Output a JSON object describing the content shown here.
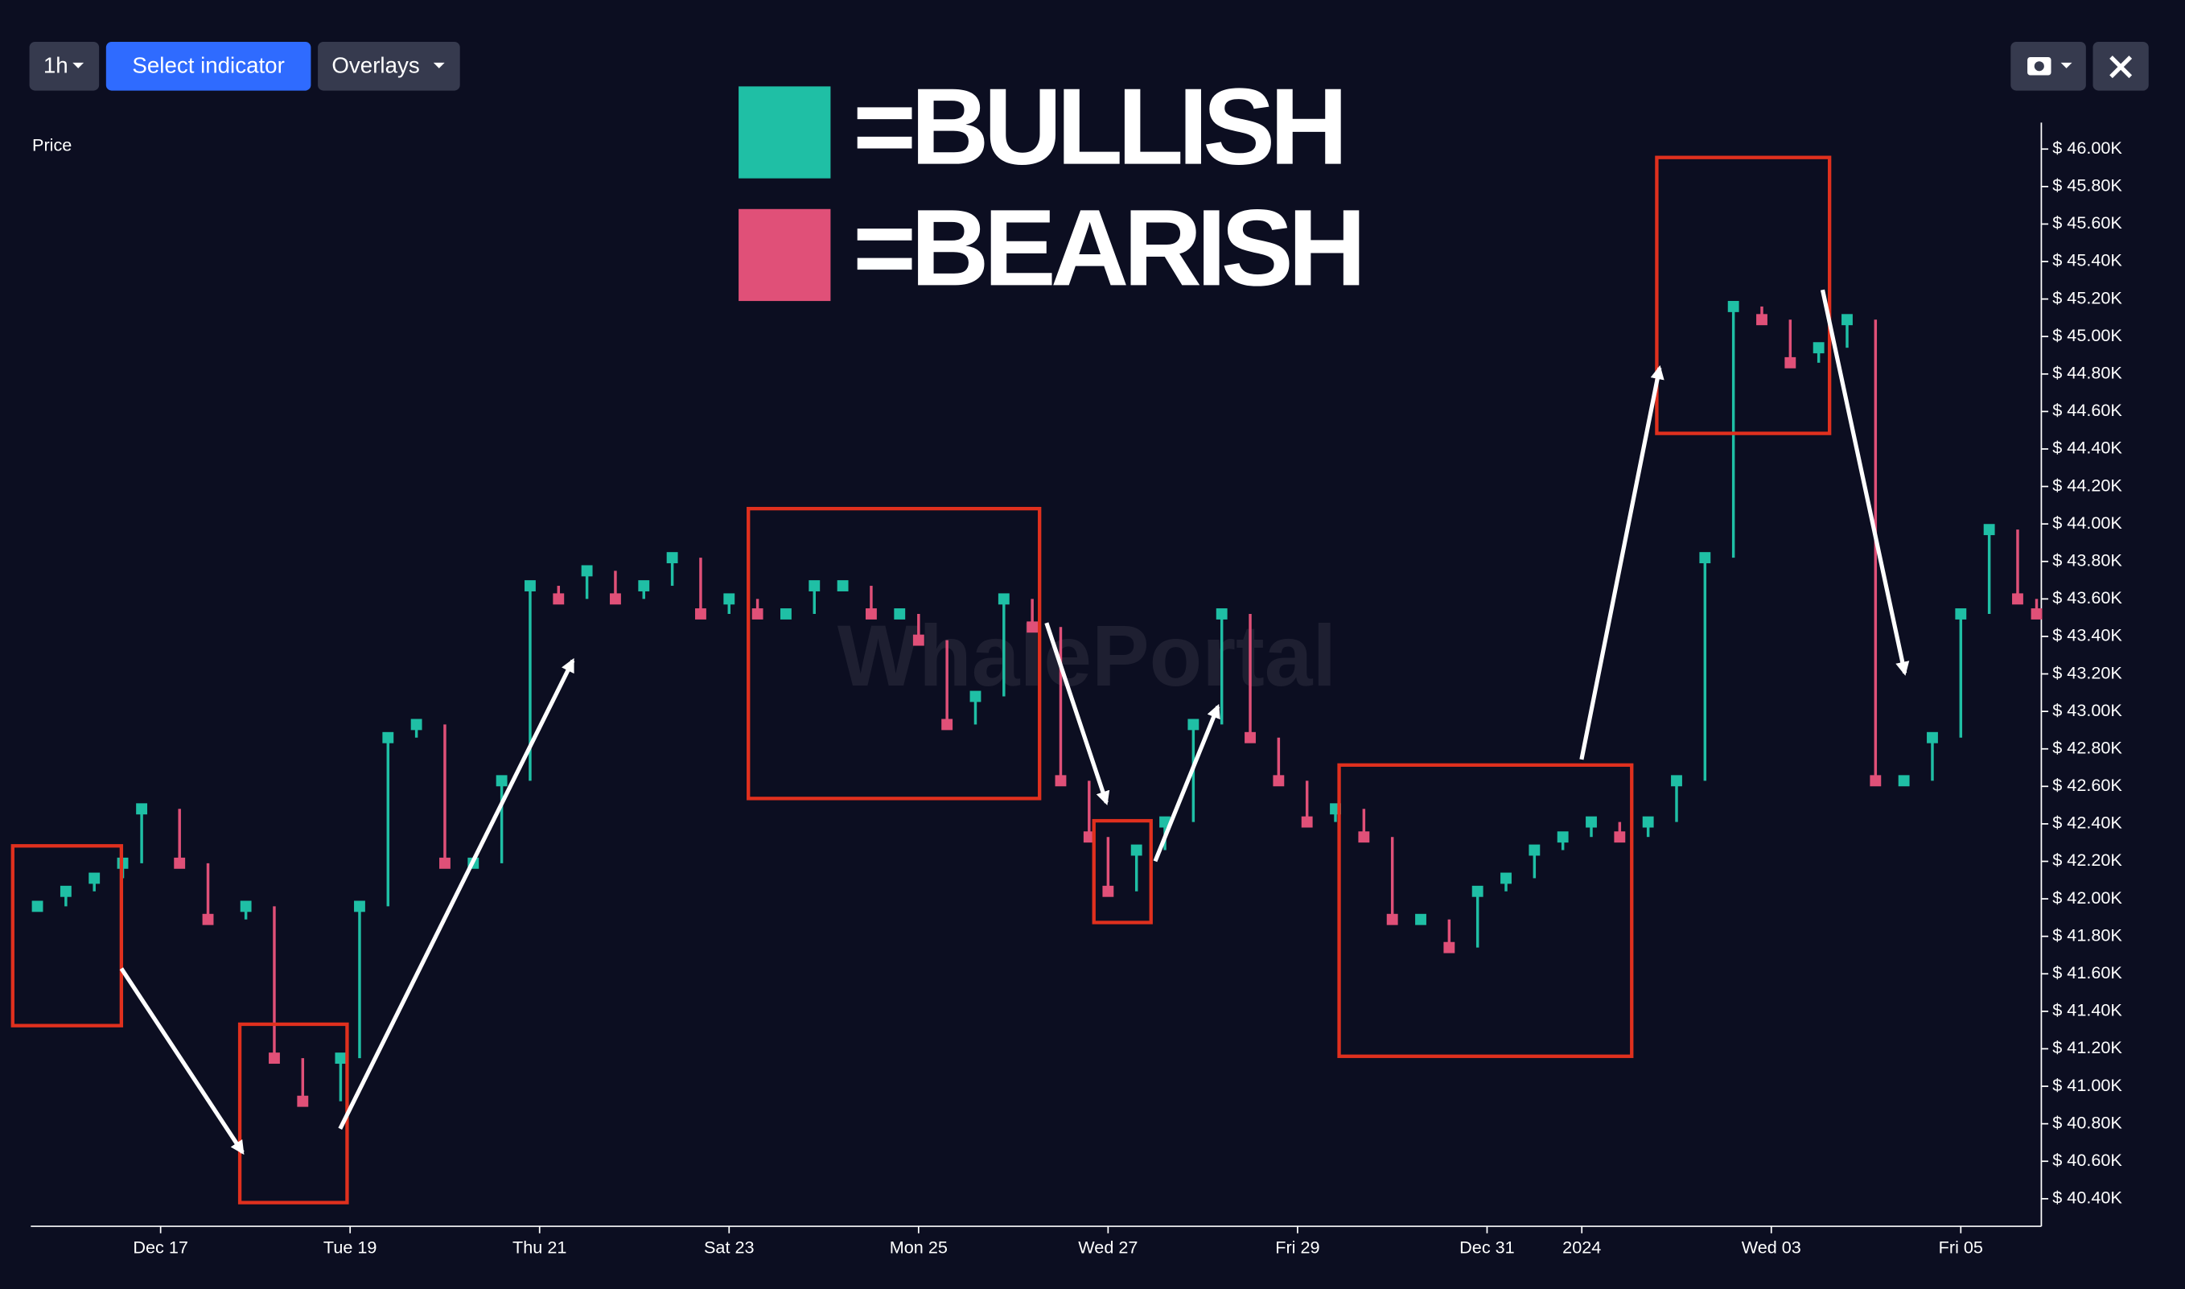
{
  "toolbar": {
    "interval": "1h",
    "indicator": "Select indicator",
    "overlays": "Overlays"
  },
  "watermark": "WhalePortal",
  "chart_data": {
    "type": "scatter",
    "ylabel": "Price",
    "legend": [
      {
        "label": "=BULLISH",
        "color": "#1fbfa5"
      },
      {
        "label": "=BEARISH",
        "color": "#e05078"
      }
    ],
    "x": [
      15.7,
      16,
      16.3,
      16.6,
      16.8,
      17.2,
      17.5,
      17.9,
      18.2,
      18.5,
      18.9,
      19.1,
      19.4,
      19.7,
      20,
      20.3,
      20.6,
      20.9,
      21.2,
      21.5,
      21.8,
      22.1,
      22.4,
      22.7,
      23,
      23.3,
      23.6,
      23.9,
      24.2,
      24.5,
      24.8,
      25,
      25.3,
      25.6,
      25.9,
      26.2,
      26.5,
      26.8,
      27,
      27.3,
      27.6,
      27.9,
      28.2,
      28.5,
      28.8,
      29.1,
      29.4,
      29.7,
      30,
      30.3,
      30.6,
      30.9,
      31.2,
      31.5,
      31.8,
      32.1,
      32.4,
      32.7,
      33,
      33.3,
      33.6,
      33.9,
      34.2,
      34.5,
      34.8,
      35.1,
      35.4,
      35.7,
      36,
      36.3,
      36.6,
      36.8
    ],
    "values": [
      41960,
      42040,
      42110,
      42190,
      42480,
      42190,
      41890,
      41960,
      41150,
      40920,
      41150,
      41960,
      42860,
      42930,
      42190,
      42190,
      42630,
      43670,
      43600,
      43750,
      43600,
      43670,
      43820,
      43520,
      43600,
      43520,
      43520,
      43670,
      43670,
      43520,
      43520,
      43380,
      42930,
      43080,
      43600,
      43450,
      42630,
      42330,
      42040,
      42260,
      42410,
      42930,
      43520,
      42860,
      42630,
      42410,
      42480,
      42330,
      41890,
      41890,
      41740,
      42040,
      42110,
      42260,
      42330,
      42410,
      42330,
      42410,
      42630,
      43820,
      45160,
      45090,
      44860,
      44940,
      45090,
      42630,
      42630,
      42860,
      43520,
      43970,
      43600,
      43520
    ],
    "xlim": [
      15.63,
      36.85
    ],
    "ylim": [
      40253,
      46141
    ],
    "xticks": [
      {
        "value": 17,
        "label": "Dec 17"
      },
      {
        "value": 19,
        "label": "Tue 19"
      },
      {
        "value": 21,
        "label": "Thu 21"
      },
      {
        "value": 23,
        "label": "Sat 23"
      },
      {
        "value": 25,
        "label": "Mon 25"
      },
      {
        "value": 27,
        "label": "Wed 27"
      },
      {
        "value": 29,
        "label": "Fri 29"
      },
      {
        "value": 31,
        "label": "Dec 31"
      },
      {
        "value": 32,
        "label": "2024"
      },
      {
        "value": 34,
        "label": "Wed 03"
      },
      {
        "value": 36,
        "label": "Fri 05"
      }
    ],
    "yticks": [
      {
        "value": 40400,
        "label": "$ 40.40K"
      },
      {
        "value": 40600,
        "label": "$ 40.60K"
      },
      {
        "value": 40800,
        "label": "$ 40.80K"
      },
      {
        "value": 41000,
        "label": "$ 41.00K"
      },
      {
        "value": 41200,
        "label": "$ 41.20K"
      },
      {
        "value": 41400,
        "label": "$ 41.40K"
      },
      {
        "value": 41600,
        "label": "$ 41.60K"
      },
      {
        "value": 41800,
        "label": "$ 41.80K"
      },
      {
        "value": 42000,
        "label": "$ 42.00K"
      },
      {
        "value": 42200,
        "label": "$ 42.20K"
      },
      {
        "value": 42400,
        "label": "$ 42.40K"
      },
      {
        "value": 42600,
        "label": "$ 42.60K"
      },
      {
        "value": 42800,
        "label": "$ 42.80K"
      },
      {
        "value": 43000,
        "label": "$ 43.00K"
      },
      {
        "value": 43200,
        "label": "$ 43.20K"
      },
      {
        "value": 43400,
        "label": "$ 43.40K"
      },
      {
        "value": 43600,
        "label": "$ 43.60K"
      },
      {
        "value": 43800,
        "label": "$ 43.80K"
      },
      {
        "value": 44000,
        "label": "$ 44.00K"
      },
      {
        "value": 44200,
        "label": "$ 44.20K"
      },
      {
        "value": 44400,
        "label": "$ 44.40K"
      },
      {
        "value": 44600,
        "label": "$ 44.60K"
      },
      {
        "value": 44800,
        "label": "$ 44.80K"
      },
      {
        "value": 45000,
        "label": "$ 45.00K"
      },
      {
        "value": 45200,
        "label": "$ 45.20K"
      },
      {
        "value": 45400,
        "label": "$ 45.40K"
      },
      {
        "value": 45600,
        "label": "$ 45.60K"
      },
      {
        "value": 45800,
        "label": "$ 45.80K"
      },
      {
        "value": 46000,
        "label": "$ 46.00K"
      }
    ]
  }
}
